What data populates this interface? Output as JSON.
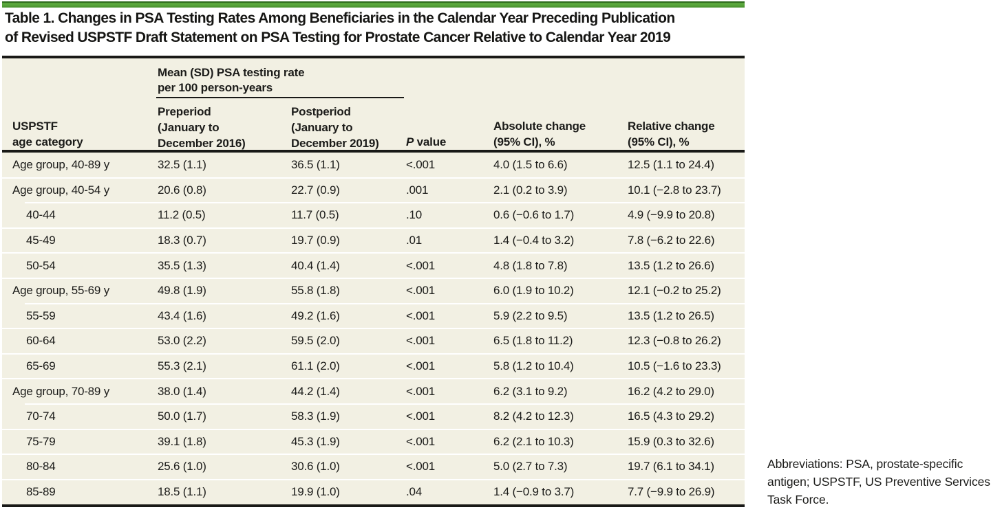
{
  "colors": {
    "accent_green": "#55a238",
    "accent_green_dark": "#2e6b1d",
    "table_background": "#f2f0e3",
    "rule": "#191917",
    "row_separator": "#ffffff"
  },
  "title": {
    "lines": [
      "Table 1. Changes in PSA Testing Rates Among Beneficiaries in the Calendar Year Preceding Publication",
      "of Revised USPSTF Draft Statement on PSA Testing for Prostate Cancer Relative to Calendar Year 2019"
    ]
  },
  "table": {
    "spanner": {
      "lines": [
        "Mean (SD) PSA testing rate",
        "per 100 person-years"
      ]
    },
    "headers": {
      "age_category": {
        "lines": [
          "USPSTF",
          "age category"
        ]
      },
      "preperiod": {
        "lines": [
          "Preperiod",
          "(January to",
          "December 2016)"
        ]
      },
      "postperiod": {
        "lines": [
          "Postperiod",
          "(January to",
          "December 2019)"
        ]
      },
      "p_value": {
        "italic": "P",
        "rest": " value"
      },
      "absolute": {
        "lines": [
          "Absolute change",
          "(95% CI), %"
        ]
      },
      "relative": {
        "lines": [
          "Relative change",
          "(95% CI), %"
        ]
      }
    },
    "rows": [
      {
        "category": "Age group, 40-89 y",
        "indent": false,
        "preperiod": "32.5 (1.1)",
        "postperiod": "36.5 (1.1)",
        "p_value": "<.001",
        "absolute_change": "4.0 (1.5 to 6.6)",
        "relative_change": "12.5 (1.1 to 24.4)"
      },
      {
        "category": "Age group, 40-54 y",
        "indent": false,
        "preperiod": "20.6 (0.8)",
        "postperiod": "22.7 (0.9)",
        "p_value": ".001",
        "absolute_change": "2.1 (0.2 to 3.9)",
        "relative_change": "10.1 (−2.8 to 23.7)"
      },
      {
        "category": "40-44",
        "indent": true,
        "preperiod": "11.2 (0.5)",
        "postperiod": "11.7 (0.5)",
        "p_value": ".10",
        "absolute_change": "0.6 (−0.6 to 1.7)",
        "relative_change": "4.9 (−9.9 to 20.8)"
      },
      {
        "category": "45-49",
        "indent": true,
        "preperiod": "18.3 (0.7)",
        "postperiod": "19.7 (0.9)",
        "p_value": ".01",
        "absolute_change": "1.4 (−0.4 to 3.2)",
        "relative_change": "7.8 (−6.2 to 22.6)"
      },
      {
        "category": "50-54",
        "indent": true,
        "preperiod": "35.5 (1.3)",
        "postperiod": "40.4 (1.4)",
        "p_value": "<.001",
        "absolute_change": "4.8 (1.8 to 7.8)",
        "relative_change": "13.5 (1.2 to 26.6)"
      },
      {
        "category": "Age group, 55-69 y",
        "indent": false,
        "preperiod": "49.8 (1.9)",
        "postperiod": "55.8 (1.8)",
        "p_value": "<.001",
        "absolute_change": "6.0 (1.9 to 10.2)",
        "relative_change": "12.1 (−0.2 to 25.2)"
      },
      {
        "category": "55-59",
        "indent": true,
        "preperiod": "43.4 (1.6)",
        "postperiod": "49.2 (1.6)",
        "p_value": "<.001",
        "absolute_change": "5.9 (2.2 to 9.5)",
        "relative_change": "13.5 (1.2 to 26.5)"
      },
      {
        "category": "60-64",
        "indent": true,
        "preperiod": "53.0 (2.2)",
        "postperiod": "59.5 (2.0)",
        "p_value": "<.001",
        "absolute_change": "6.5 (1.8 to 11.2)",
        "relative_change": "12.3 (−0.8 to 26.2)"
      },
      {
        "category": "65-69",
        "indent": true,
        "preperiod": "55.3 (2.1)",
        "postperiod": "61.1 (2.0)",
        "p_value": "<.001",
        "absolute_change": "5.8 (1.2 to 10.4)",
        "relative_change": "10.5 (−1.6 to 23.3)"
      },
      {
        "category": "Age group, 70-89 y",
        "indent": false,
        "preperiod": "38.0 (1.4)",
        "postperiod": "44.2 (1.4)",
        "p_value": "<.001",
        "absolute_change": "6.2 (3.1 to 9.2)",
        "relative_change": "16.2 (4.2 to 29.0)"
      },
      {
        "category": "70-74",
        "indent": true,
        "preperiod": "50.0 (1.7)",
        "postperiod": "58.3 (1.9)",
        "p_value": "<.001",
        "absolute_change": "8.2 (4.2 to 12.3)",
        "relative_change": "16.5 (4.3 to 29.2)"
      },
      {
        "category": "75-79",
        "indent": true,
        "preperiod": "39.1 (1.8)",
        "postperiod": "45.3 (1.9)",
        "p_value": "<.001",
        "absolute_change": "6.2 (2.1 to 10.3)",
        "relative_change": "15.9 (0.3 to 32.6)"
      },
      {
        "category": "80-84",
        "indent": true,
        "preperiod": "25.6 (1.0)",
        "postperiod": "30.6 (1.0)",
        "p_value": "<.001",
        "absolute_change": "5.0 (2.7 to 7.3)",
        "relative_change": "19.7 (6.1 to 34.1)"
      },
      {
        "category": "85-89",
        "indent": true,
        "preperiod": "18.5 (1.1)",
        "postperiod": "19.9 (1.0)",
        "p_value": ".04",
        "absolute_change": "1.4 (−0.9 to 3.7)",
        "relative_change": "7.7 (−9.9 to 26.9)"
      }
    ]
  },
  "footnote": {
    "text": "Abbreviations: PSA, prostate-specific antigen; USPSTF, US Preventive Services Task Force."
  }
}
